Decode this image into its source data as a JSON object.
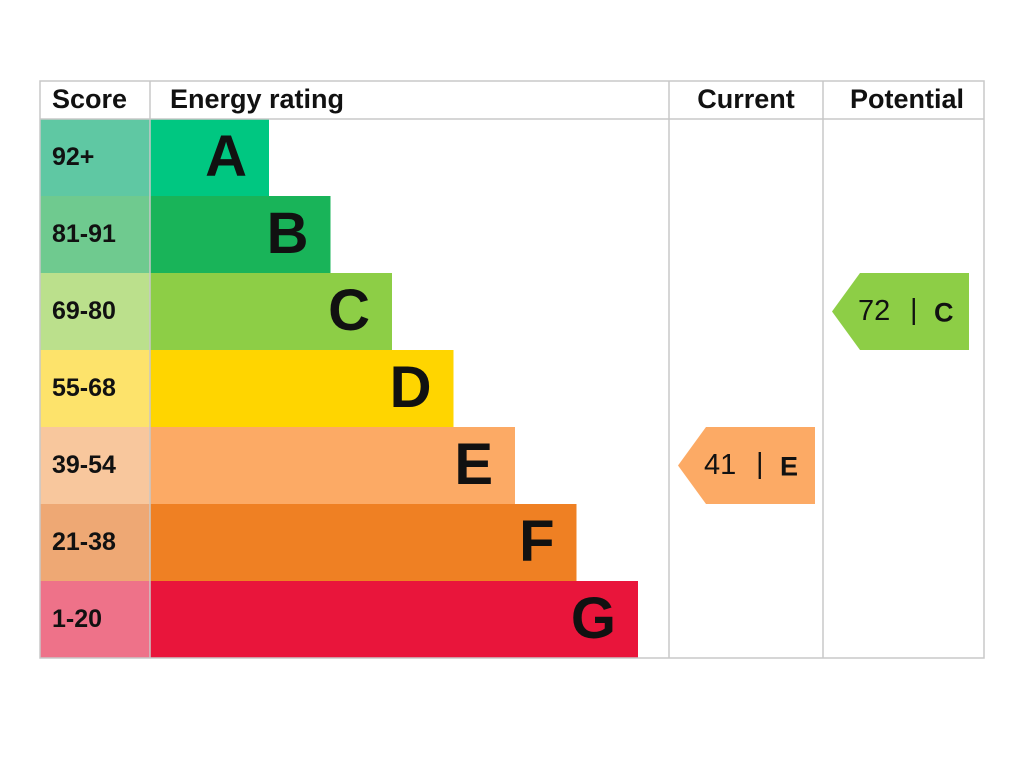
{
  "header": {
    "score": "Score",
    "rating": "Energy rating",
    "current": "Current",
    "potential": "Potential"
  },
  "rows": [
    {
      "score": "92+",
      "letter": "A",
      "color": "#00c781",
      "score_color": "#5fc8a3"
    },
    {
      "score": "81-91",
      "letter": "B",
      "color": "#19b459",
      "score_color": "#6fca8f"
    },
    {
      "score": "69-80",
      "letter": "C",
      "color": "#8dce46",
      "score_color": "#bbe08c"
    },
    {
      "score": "55-68",
      "letter": "D",
      "color": "#ffd500",
      "score_color": "#fde36b"
    },
    {
      "score": "39-54",
      "letter": "E",
      "color": "#fcaa65",
      "score_color": "#f8c79d"
    },
    {
      "score": "21-38",
      "letter": "F",
      "color": "#ef8023",
      "score_color": "#eea874"
    },
    {
      "score": "1-20",
      "letter": "G",
      "color": "#e9153b",
      "score_color": "#ee7289"
    }
  ],
  "current": {
    "score": "41",
    "separator": "|",
    "rating": "E"
  },
  "potential": {
    "score": "72",
    "separator": "|",
    "rating": "C"
  }
}
